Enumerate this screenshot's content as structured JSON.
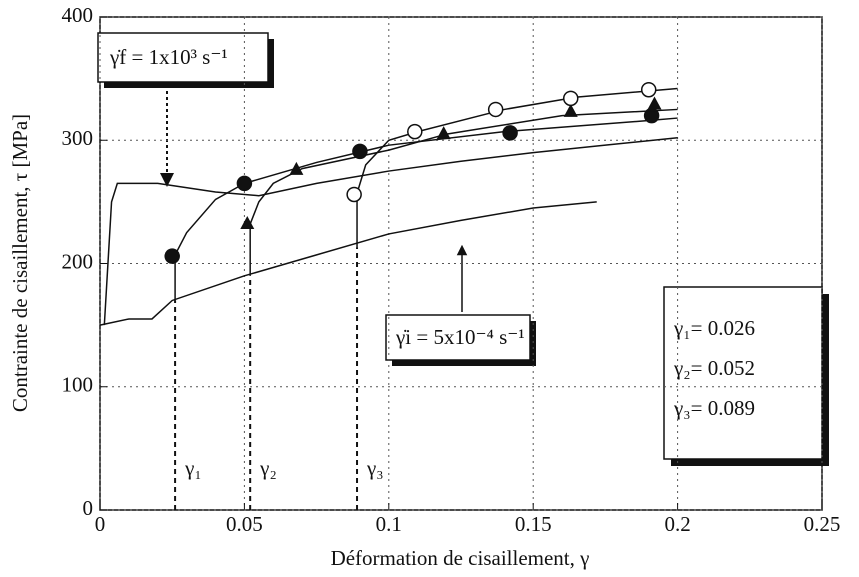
{
  "chart_data": {
    "type": "line",
    "xlabel": "Déformation de cisaillement, γ",
    "ylabel": "Contrainte de cisaillement, τ [MPa]",
    "xlim": [
      0,
      0.25
    ],
    "xticks": [
      0,
      0.05,
      0.1,
      0.15,
      0.2,
      0.25
    ],
    "ylim": [
      0,
      400
    ],
    "yticks": [
      0,
      100,
      200,
      300,
      400
    ],
    "grid": true,
    "annotations": [
      "γ̇f = 1x10³ s⁻¹",
      "γ̇i = 5x10⁻⁴ s⁻¹"
    ],
    "jumps": [
      {
        "label": "γ₁",
        "value": 0.026,
        "text": "γ₁= 0.026"
      },
      {
        "label": "γ₂",
        "value": 0.052,
        "text": "γ₂= 0.052"
      },
      {
        "label": "γ₃",
        "value": 0.089,
        "text": "γ₃= 0.089"
      }
    ],
    "series": [
      {
        "color": "#111",
        "x": [
          0,
          0.01,
          0.018,
          0.025,
          0.05,
          0.075,
          0.1,
          0.125,
          0.15,
          0.172
        ],
        "values": [
          150,
          155,
          155,
          170,
          190,
          207,
          224,
          235,
          245,
          250
        ]
      },
      {
        "color": "#111",
        "x": [
          0.0015,
          0.004,
          0.006,
          0.02,
          0.04,
          0.055,
          0.075,
          0.1,
          0.125,
          0.15,
          0.175,
          0.2
        ],
        "values": [
          150,
          250,
          265,
          265,
          258,
          255,
          265,
          275,
          283,
          290,
          296,
          302
        ]
      },
      {
        "color": "#111",
        "marker": "filled-circle",
        "x": [
          0.026,
          0.026,
          0.03,
          0.04,
          0.05,
          0.075,
          0.1,
          0.14,
          0.19,
          0.2
        ],
        "values": [
          170,
          207,
          225,
          252,
          265,
          282,
          296,
          307,
          316,
          318
        ],
        "marker_x": [
          0.025,
          0.05,
          0.09,
          0.142,
          0.191
        ],
        "marker_y": [
          206,
          265,
          291,
          306,
          320
        ]
      },
      {
        "color": "#111",
        "marker": "triangle",
        "x": [
          0.052,
          0.052,
          0.055,
          0.06,
          0.07,
          0.1,
          0.12,
          0.16,
          0.2
        ],
        "values": [
          190,
          232,
          250,
          265,
          277,
          292,
          305,
          320,
          325
        ],
        "marker_x": [
          0.051,
          0.068,
          0.119,
          0.163,
          0.192
        ],
        "marker_y": [
          232,
          276,
          305,
          323,
          329
        ]
      },
      {
        "color": "#111",
        "marker": "open-circle",
        "x": [
          0.089,
          0.089,
          0.092,
          0.1,
          0.11,
          0.14,
          0.165,
          0.2
        ],
        "values": [
          213,
          257,
          280,
          300,
          307,
          325,
          335,
          342
        ],
        "marker_x": [
          0.088,
          0.109,
          0.137,
          0.163,
          0.19
        ],
        "marker_y": [
          256,
          307,
          325,
          334,
          341
        ]
      }
    ]
  }
}
